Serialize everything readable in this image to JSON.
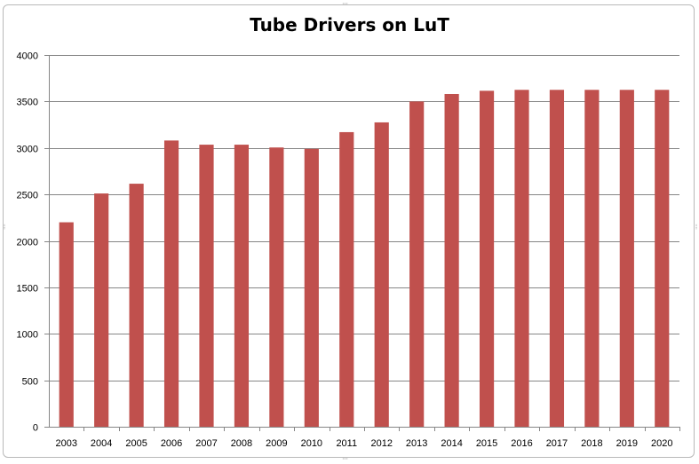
{
  "chart_data": {
    "type": "bar",
    "title": "Tube Drivers on LuT",
    "xlabel": "",
    "ylabel": "",
    "categories": [
      "2003",
      "2004",
      "2005",
      "2006",
      "2007",
      "2008",
      "2009",
      "2010",
      "2011",
      "2012",
      "2013",
      "2014",
      "2015",
      "2016",
      "2017",
      "2018",
      "2019",
      "2020"
    ],
    "values": [
      2200,
      2510,
      2615,
      3080,
      3035,
      3035,
      3005,
      2990,
      3170,
      3275,
      3500,
      3580,
      3615,
      3625,
      3625,
      3625,
      3625,
      3625
    ],
    "ylim": [
      0,
      4000
    ],
    "yticks": [
      0,
      500,
      1000,
      1500,
      2000,
      2500,
      3000,
      3500,
      4000
    ],
    "grid": true,
    "legend": "none",
    "bar_color": "#C0504D",
    "grid_color": "#868686"
  }
}
